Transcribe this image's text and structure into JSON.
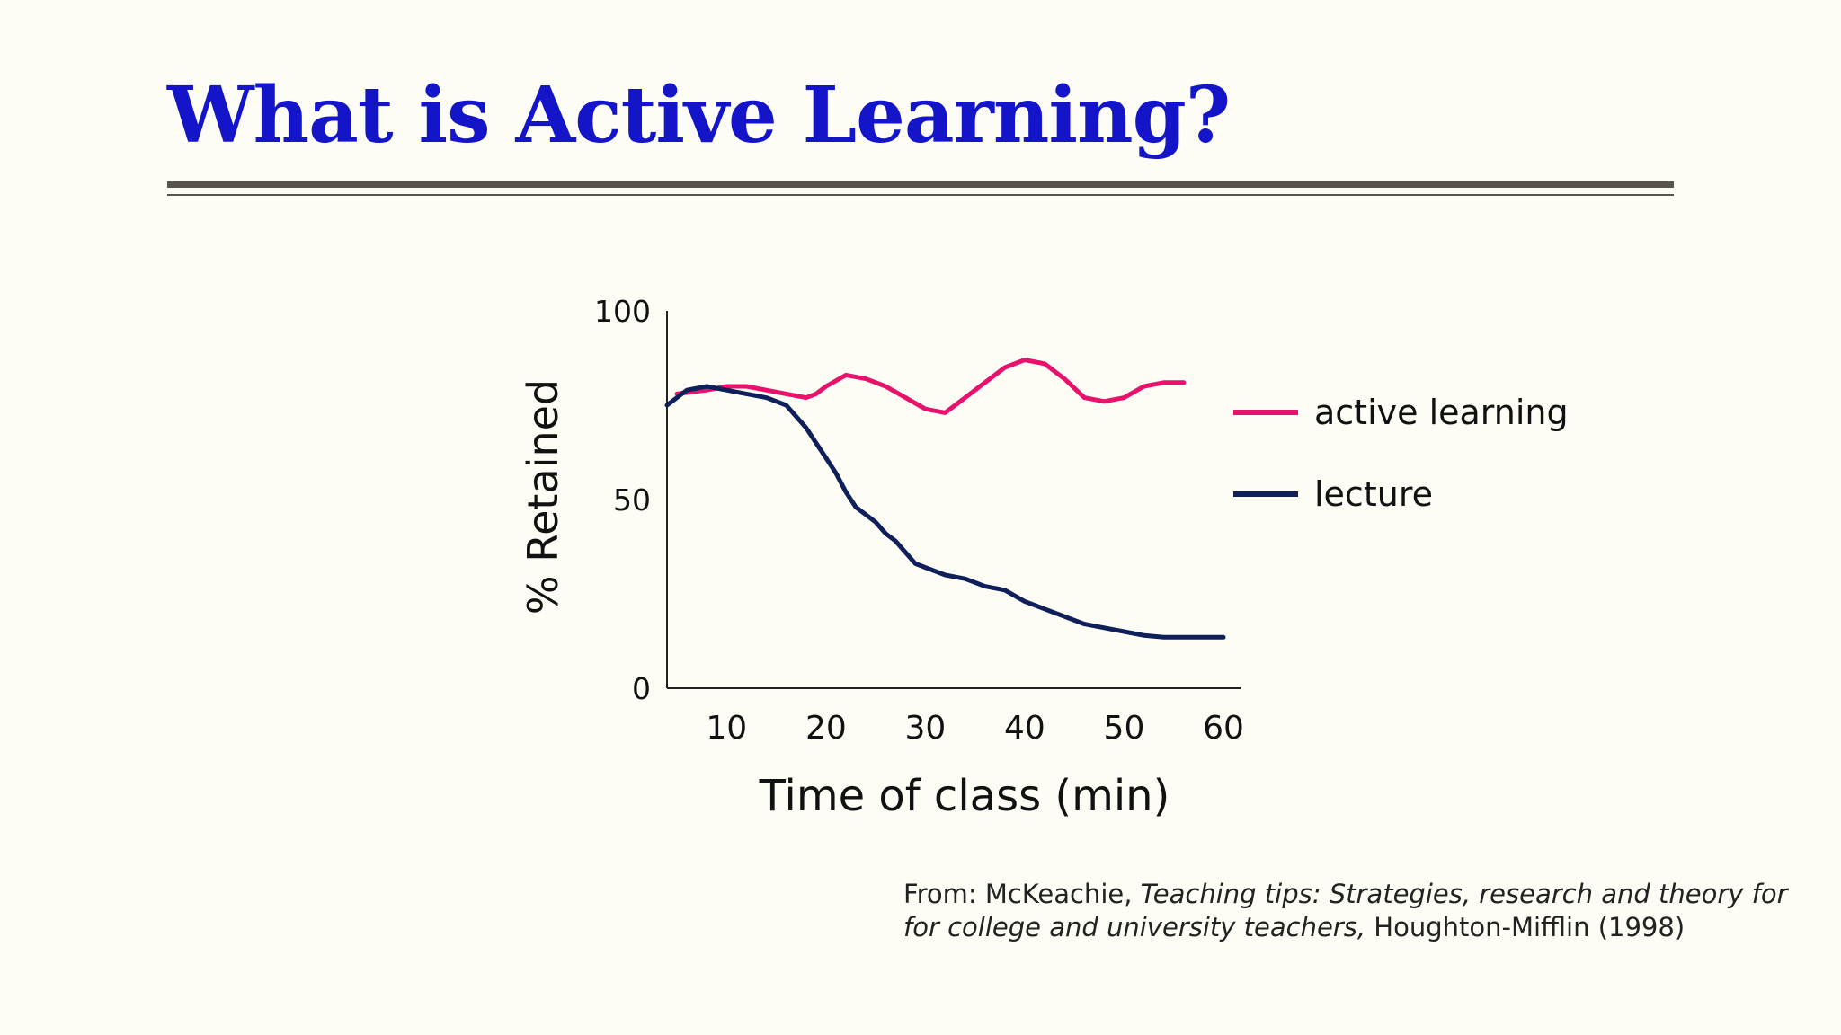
{
  "slide": {
    "title": "What is Active Learning?",
    "citation": {
      "prefix": "From: McKeachie, ",
      "book_line1": "Teaching tips: Strategies, research and theory for",
      "book_line2": "for college and university teachers,",
      "suffix": " Houghton-Mifflin (1998)"
    }
  },
  "colors": {
    "title": "#1414c8",
    "active_learning": "#e8126c",
    "lecture": "#0e1f5a"
  },
  "chart_data": {
    "type": "line",
    "xlabel": "Time of class (min)",
    "ylabel": "% Retained",
    "xlim": [
      4,
      60
    ],
    "ylim": [
      0,
      100
    ],
    "x_ticks": [
      10,
      20,
      30,
      40,
      50,
      60
    ],
    "y_ticks": [
      0,
      50,
      100
    ],
    "legend_position": "right",
    "grid": false,
    "series": [
      {
        "name": "active learning",
        "color": "#e8126c",
        "x": [
          5,
          8,
          10,
          12,
          14,
          16,
          18,
          19,
          20,
          22,
          24,
          26,
          28,
          30,
          32,
          34,
          36,
          38,
          40,
          42,
          44,
          46,
          48,
          50,
          52,
          54,
          56
        ],
        "y": [
          78,
          79,
          80,
          80,
          79,
          78,
          77,
          78,
          80,
          83,
          82,
          80,
          77,
          74,
          73,
          77,
          81,
          85,
          87,
          86,
          82,
          77,
          76,
          77,
          80,
          81,
          81
        ]
      },
      {
        "name": "lecture",
        "color": "#0e1f5a",
        "x": [
          4,
          6,
          8,
          10,
          12,
          14,
          16,
          18,
          19,
          20,
          21,
          22,
          23,
          24,
          25,
          26,
          27,
          28,
          29,
          30,
          32,
          34,
          36,
          38,
          40,
          42,
          44,
          46,
          48,
          50,
          52,
          54,
          56,
          58,
          60
        ],
        "y": [
          75,
          79,
          80,
          79,
          78,
          77,
          75,
          69,
          65,
          61,
          57,
          52,
          48,
          46,
          44,
          41,
          39,
          36,
          33,
          32,
          30,
          29,
          27,
          26,
          23,
          21,
          19,
          17,
          16,
          15,
          14,
          13.5,
          13.5,
          13.5,
          13.5
        ]
      }
    ]
  }
}
